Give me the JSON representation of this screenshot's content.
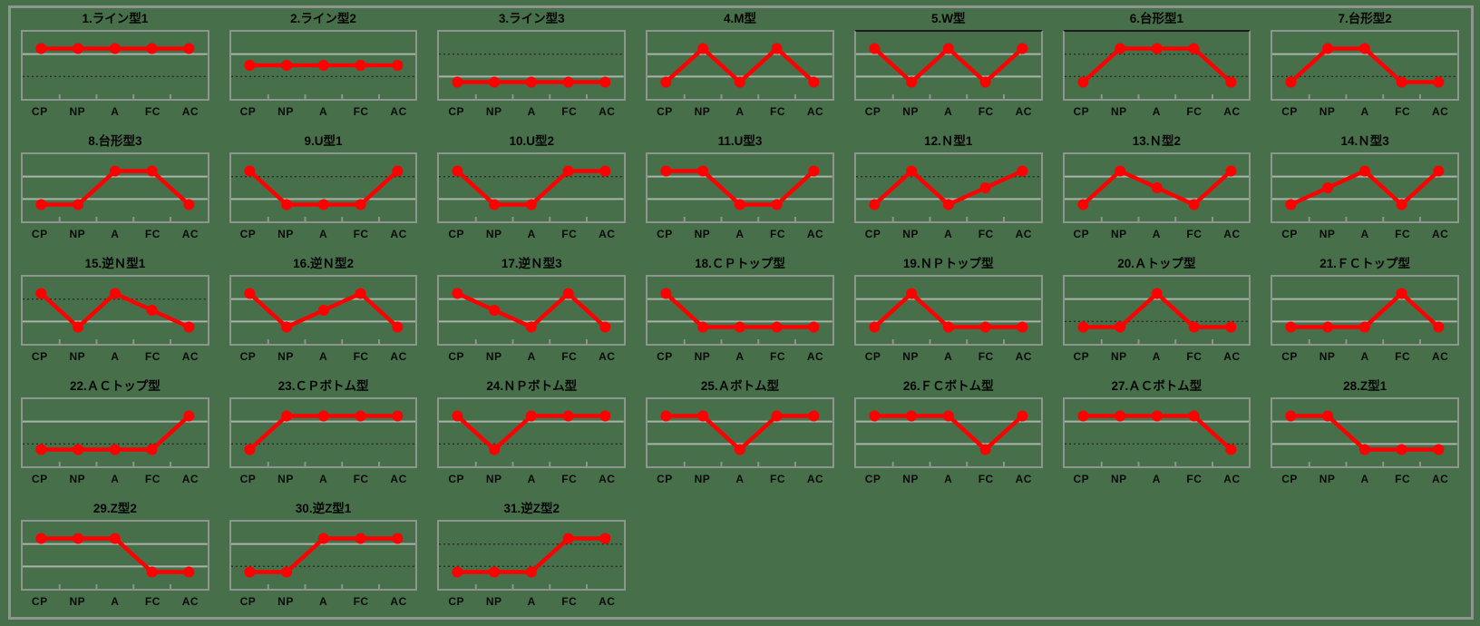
{
  "page": {
    "background_color": "#476F4A",
    "frame_border_color": "#8E948E",
    "series_color": "#FF0000",
    "gridline_solid_color": "#ABB1AB",
    "gridline_dotted_color": "#2B2B2B",
    "columns_per_row": 7
  },
  "chart_data": [
    {
      "type": "line",
      "title": "1.ライン型1",
      "categories": [
        "CP",
        "NP",
        "A",
        "FC",
        "AC"
      ],
      "values": [
        3,
        3,
        3,
        3,
        3
      ],
      "ylim": [
        0,
        4
      ],
      "gridlines": [
        "solid",
        "dotted"
      ],
      "line_color": "#FF0000"
    },
    {
      "type": "line",
      "title": "2.ライン型2",
      "categories": [
        "CP",
        "NP",
        "A",
        "FC",
        "AC"
      ],
      "values": [
        2,
        2,
        2,
        2,
        2
      ],
      "ylim": [
        0,
        4
      ],
      "gridlines": [
        "solid",
        "dotted"
      ],
      "line_color": "#FF0000"
    },
    {
      "type": "line",
      "title": "3.ライン型3",
      "categories": [
        "CP",
        "NP",
        "A",
        "FC",
        "AC"
      ],
      "values": [
        1,
        1,
        1,
        1,
        1
      ],
      "ylim": [
        0,
        4
      ],
      "gridlines": [
        "dotted",
        "solid"
      ],
      "line_color": "#FF0000"
    },
    {
      "type": "line",
      "title": "4.M型",
      "categories": [
        "CP",
        "NP",
        "A",
        "FC",
        "AC"
      ],
      "values": [
        1,
        3,
        1,
        3,
        1
      ],
      "ylim": [
        0,
        4
      ],
      "gridlines": [
        "solid",
        "solid"
      ],
      "line_color": "#FF0000"
    },
    {
      "type": "line",
      "title": "5.W型",
      "categories": [
        "CP",
        "NP",
        "A",
        "FC",
        "AC"
      ],
      "values": [
        3,
        1,
        3,
        1,
        3
      ],
      "ylim": [
        0,
        4
      ],
      "gridlines": [
        "solid",
        "solid"
      ],
      "line_color": "#FF0000",
      "black_top": true
    },
    {
      "type": "line",
      "title": "6.台形型1",
      "categories": [
        "CP",
        "NP",
        "A",
        "FC",
        "AC"
      ],
      "values": [
        1,
        3,
        3,
        3,
        1
      ],
      "ylim": [
        0,
        4
      ],
      "gridlines": [
        "dotted",
        "dotted"
      ],
      "line_color": "#FF0000",
      "black_top": true
    },
    {
      "type": "line",
      "title": "7.台形型2",
      "categories": [
        "CP",
        "NP",
        "A",
        "FC",
        "AC"
      ],
      "values": [
        1,
        3,
        3,
        1,
        1
      ],
      "ylim": [
        0,
        4
      ],
      "gridlines": [
        "solid",
        "dotted"
      ],
      "line_color": "#FF0000"
    },
    {
      "type": "line",
      "title": "8.台形型3",
      "categories": [
        "CP",
        "NP",
        "A",
        "FC",
        "AC"
      ],
      "values": [
        1,
        1,
        3,
        3,
        1
      ],
      "ylim": [
        0,
        4
      ],
      "gridlines": [
        "solid",
        "solid"
      ],
      "line_color": "#FF0000"
    },
    {
      "type": "line",
      "title": "9.U型1",
      "categories": [
        "CP",
        "NP",
        "A",
        "FC",
        "AC"
      ],
      "values": [
        3,
        1,
        1,
        1,
        3
      ],
      "ylim": [
        0,
        4
      ],
      "gridlines": [
        "dotted",
        "solid"
      ],
      "line_color": "#FF0000"
    },
    {
      "type": "line",
      "title": "10.U型2",
      "categories": [
        "CP",
        "NP",
        "A",
        "FC",
        "AC"
      ],
      "values": [
        3,
        1,
        1,
        3,
        3
      ],
      "ylim": [
        0,
        4
      ],
      "gridlines": [
        "dotted",
        "solid"
      ],
      "line_color": "#FF0000"
    },
    {
      "type": "line",
      "title": "11.U型3",
      "categories": [
        "CP",
        "NP",
        "A",
        "FC",
        "AC"
      ],
      "values": [
        3,
        3,
        1,
        1,
        3
      ],
      "ylim": [
        0,
        4
      ],
      "gridlines": [
        "solid",
        "solid"
      ],
      "line_color": "#FF0000"
    },
    {
      "type": "line",
      "title": "12.Ｎ型1",
      "categories": [
        "CP",
        "NP",
        "A",
        "FC",
        "AC"
      ],
      "values": [
        1,
        3,
        1,
        2,
        3
      ],
      "ylim": [
        0,
        4
      ],
      "gridlines": [
        "dotted",
        "solid"
      ],
      "line_color": "#FF0000"
    },
    {
      "type": "line",
      "title": "13.Ｎ型2",
      "categories": [
        "CP",
        "NP",
        "A",
        "FC",
        "AC"
      ],
      "values": [
        1,
        3,
        2,
        1,
        3
      ],
      "ylim": [
        0,
        4
      ],
      "gridlines": [
        "solid",
        "solid"
      ],
      "line_color": "#FF0000"
    },
    {
      "type": "line",
      "title": "14.Ｎ型3",
      "categories": [
        "CP",
        "NP",
        "A",
        "FC",
        "AC"
      ],
      "values": [
        1,
        2,
        3,
        1,
        3
      ],
      "ylim": [
        0,
        4
      ],
      "gridlines": [
        "solid",
        "solid"
      ],
      "line_color": "#FF0000"
    },
    {
      "type": "line",
      "title": "15.逆Ｎ型1",
      "categories": [
        "CP",
        "NP",
        "A",
        "FC",
        "AC"
      ],
      "values": [
        3,
        1,
        3,
        2,
        1
      ],
      "ylim": [
        0,
        4
      ],
      "gridlines": [
        "dotted",
        "solid"
      ],
      "line_color": "#FF0000"
    },
    {
      "type": "line",
      "title": "16.逆Ｎ型2",
      "categories": [
        "CP",
        "NP",
        "A",
        "FC",
        "AC"
      ],
      "values": [
        3,
        1,
        2,
        3,
        1
      ],
      "ylim": [
        0,
        4
      ],
      "gridlines": [
        "solid",
        "solid"
      ],
      "line_color": "#FF0000"
    },
    {
      "type": "line",
      "title": "17.逆Ｎ型3",
      "categories": [
        "CP",
        "NP",
        "A",
        "FC",
        "AC"
      ],
      "values": [
        3,
        2,
        1,
        3,
        1
      ],
      "ylim": [
        0,
        4
      ],
      "gridlines": [
        "solid",
        "solid"
      ],
      "line_color": "#FF0000"
    },
    {
      "type": "line",
      "title": "18.ＣＰトップ型",
      "categories": [
        "CP",
        "NP",
        "A",
        "FC",
        "AC"
      ],
      "values": [
        3,
        1,
        1,
        1,
        1
      ],
      "ylim": [
        0,
        4
      ],
      "gridlines": [
        "solid",
        "solid"
      ],
      "line_color": "#FF0000"
    },
    {
      "type": "line",
      "title": "19.ＮＰトップ型",
      "categories": [
        "CP",
        "NP",
        "A",
        "FC",
        "AC"
      ],
      "values": [
        1,
        3,
        1,
        1,
        1
      ],
      "ylim": [
        0,
        4
      ],
      "gridlines": [
        "solid",
        "solid"
      ],
      "line_color": "#FF0000"
    },
    {
      "type": "line",
      "title": "20.Ａトップ型",
      "categories": [
        "CP",
        "NP",
        "A",
        "FC",
        "AC"
      ],
      "values": [
        1,
        1,
        3,
        1,
        1
      ],
      "ylim": [
        0,
        4
      ],
      "gridlines": [
        "solid",
        "dotted"
      ],
      "line_color": "#FF0000"
    },
    {
      "type": "line",
      "title": "21.ＦＣトップ型",
      "categories": [
        "CP",
        "NP",
        "A",
        "FC",
        "AC"
      ],
      "values": [
        1,
        1,
        1,
        3,
        1
      ],
      "ylim": [
        0,
        4
      ],
      "gridlines": [
        "solid",
        "solid"
      ],
      "line_color": "#FF0000"
    },
    {
      "type": "line",
      "title": "22.ＡＣトップ型",
      "categories": [
        "CP",
        "NP",
        "A",
        "FC",
        "AC"
      ],
      "values": [
        1,
        1,
        1,
        1,
        3
      ],
      "ylim": [
        0,
        4
      ],
      "gridlines": [
        "solid",
        "dotted"
      ],
      "line_color": "#FF0000"
    },
    {
      "type": "line",
      "title": "23.ＣＰボトム型",
      "categories": [
        "CP",
        "NP",
        "A",
        "FC",
        "AC"
      ],
      "values": [
        1,
        3,
        3,
        3,
        3
      ],
      "ylim": [
        0,
        4
      ],
      "gridlines": [
        "solid",
        "dotted"
      ],
      "line_color": "#FF0000"
    },
    {
      "type": "line",
      "title": "24.ＮＰボトム型",
      "categories": [
        "CP",
        "NP",
        "A",
        "FC",
        "AC"
      ],
      "values": [
        3,
        1,
        3,
        3,
        3
      ],
      "ylim": [
        0,
        4
      ],
      "gridlines": [
        "solid",
        "dotted"
      ],
      "line_color": "#FF0000"
    },
    {
      "type": "line",
      "title": "25.Ａボトム型",
      "categories": [
        "CP",
        "NP",
        "A",
        "FC",
        "AC"
      ],
      "values": [
        3,
        3,
        1,
        3,
        3
      ],
      "ylim": [
        0,
        4
      ],
      "gridlines": [
        "solid",
        "solid"
      ],
      "line_color": "#FF0000"
    },
    {
      "type": "line",
      "title": "26.ＦＣボトム型",
      "categories": [
        "CP",
        "NP",
        "A",
        "FC",
        "AC"
      ],
      "values": [
        3,
        3,
        3,
        1,
        3
      ],
      "ylim": [
        0,
        4
      ],
      "gridlines": [
        "solid",
        "solid"
      ],
      "line_color": "#FF0000"
    },
    {
      "type": "line",
      "title": "27.ＡＣボトム型",
      "categories": [
        "CP",
        "NP",
        "A",
        "FC",
        "AC"
      ],
      "values": [
        3,
        3,
        3,
        3,
        1
      ],
      "ylim": [
        0,
        4
      ],
      "gridlines": [
        "solid",
        "dotted"
      ],
      "line_color": "#FF0000"
    },
    {
      "type": "line",
      "title": "28.Z型1",
      "categories": [
        "CP",
        "NP",
        "A",
        "FC",
        "AC"
      ],
      "values": [
        3,
        3,
        1,
        1,
        1
      ],
      "ylim": [
        0,
        4
      ],
      "gridlines": [
        "solid",
        "solid"
      ],
      "line_color": "#FF0000"
    },
    {
      "type": "line",
      "title": "29.Z型2",
      "categories": [
        "CP",
        "NP",
        "A",
        "FC",
        "AC"
      ],
      "values": [
        3,
        3,
        3,
        1,
        1
      ],
      "ylim": [
        0,
        4
      ],
      "gridlines": [
        "solid",
        "solid"
      ],
      "line_color": "#FF0000"
    },
    {
      "type": "line",
      "title": "30.逆Z型1",
      "categories": [
        "CP",
        "NP",
        "A",
        "FC",
        "AC"
      ],
      "values": [
        1,
        1,
        3,
        3,
        3
      ],
      "ylim": [
        0,
        4
      ],
      "gridlines": [
        "solid",
        "dotted"
      ],
      "line_color": "#FF0000"
    },
    {
      "type": "line",
      "title": "31.逆Z型2",
      "categories": [
        "CP",
        "NP",
        "A",
        "FC",
        "AC"
      ],
      "values": [
        1,
        1,
        1,
        3,
        3
      ],
      "ylim": [
        0,
        4
      ],
      "gridlines": [
        "dotted",
        "dotted"
      ],
      "line_color": "#FF0000"
    }
  ]
}
